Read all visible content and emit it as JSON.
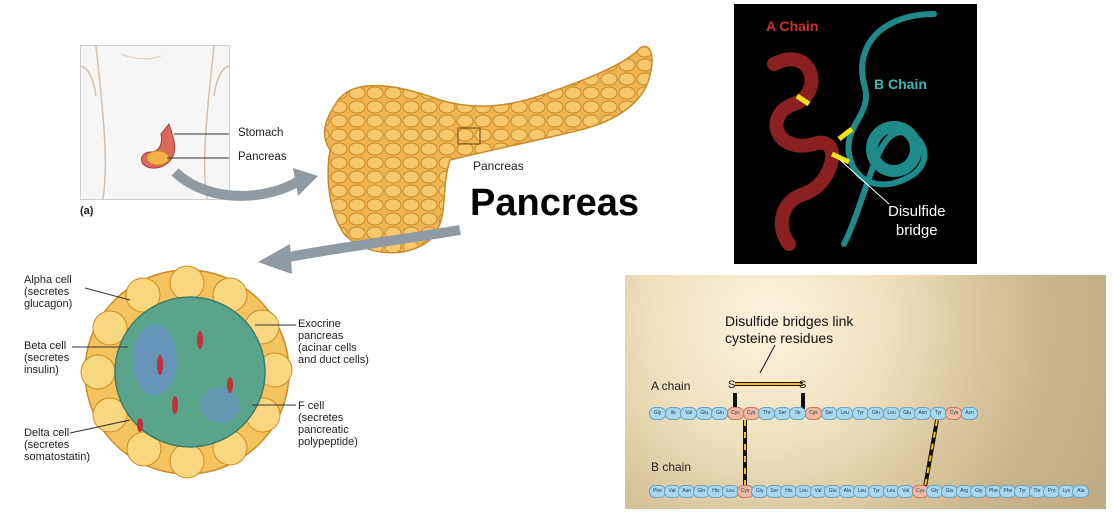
{
  "panel_a": {
    "stomach_label": "Stomach",
    "pancreas_label": "Pancreas",
    "panel_tag": "(a)"
  },
  "main": {
    "title": "Pancreas",
    "small_label": "Pancreas"
  },
  "islet": {
    "alpha": [
      "Alpha cell",
      "(secretes",
      "glucagon)"
    ],
    "beta": [
      "Beta cell",
      "(secretes",
      "insulin)"
    ],
    "delta": [
      "Delta cell",
      "(secretes",
      "somatostatin)"
    ],
    "exocrine": [
      "Exocrine",
      "pancreas",
      "(acinar cells",
      "and duct cells)"
    ],
    "fcell": [
      "F cell",
      "(secretes",
      "pancreatic",
      "polypeptide)"
    ]
  },
  "protein": {
    "a_chain": "A Chain",
    "b_chain": "B Chain",
    "disulfide": [
      "Disulfide",
      "bridge"
    ],
    "colors": {
      "a_chain": "#8b2020",
      "b_chain": "#1f8a8a",
      "bond": "#f2e21b"
    }
  },
  "sequence": {
    "caption": [
      "Disulfide bridges link",
      "cysteine residues"
    ],
    "a_label": "A chain",
    "b_label": "B chain",
    "s_label": "S",
    "a_chain": [
      "Gly",
      "Ile",
      "Val",
      "Glu",
      "Gln",
      "Cys",
      "Cys",
      "Thr",
      "Ser",
      "Ile",
      "Cys",
      "Ser",
      "Leu",
      "Tyr",
      "Gln",
      "Leu",
      "Glu",
      "Asn",
      "Tyr",
      "Cys",
      "Asn"
    ],
    "b_chain": [
      "Phe",
      "Val",
      "Asn",
      "Gln",
      "His",
      "Leu",
      "Cys",
      "Gly",
      "Ser",
      "His",
      "Leu",
      "Val",
      "Glu",
      "Ala",
      "Leu",
      "Tyr",
      "Leu",
      "Val",
      "Cys",
      "Gly",
      "Glu",
      "Arg",
      "Gly",
      "Phe",
      "Phe",
      "Tyr",
      "Thr",
      "Pro",
      "Lys",
      "Ala"
    ]
  }
}
